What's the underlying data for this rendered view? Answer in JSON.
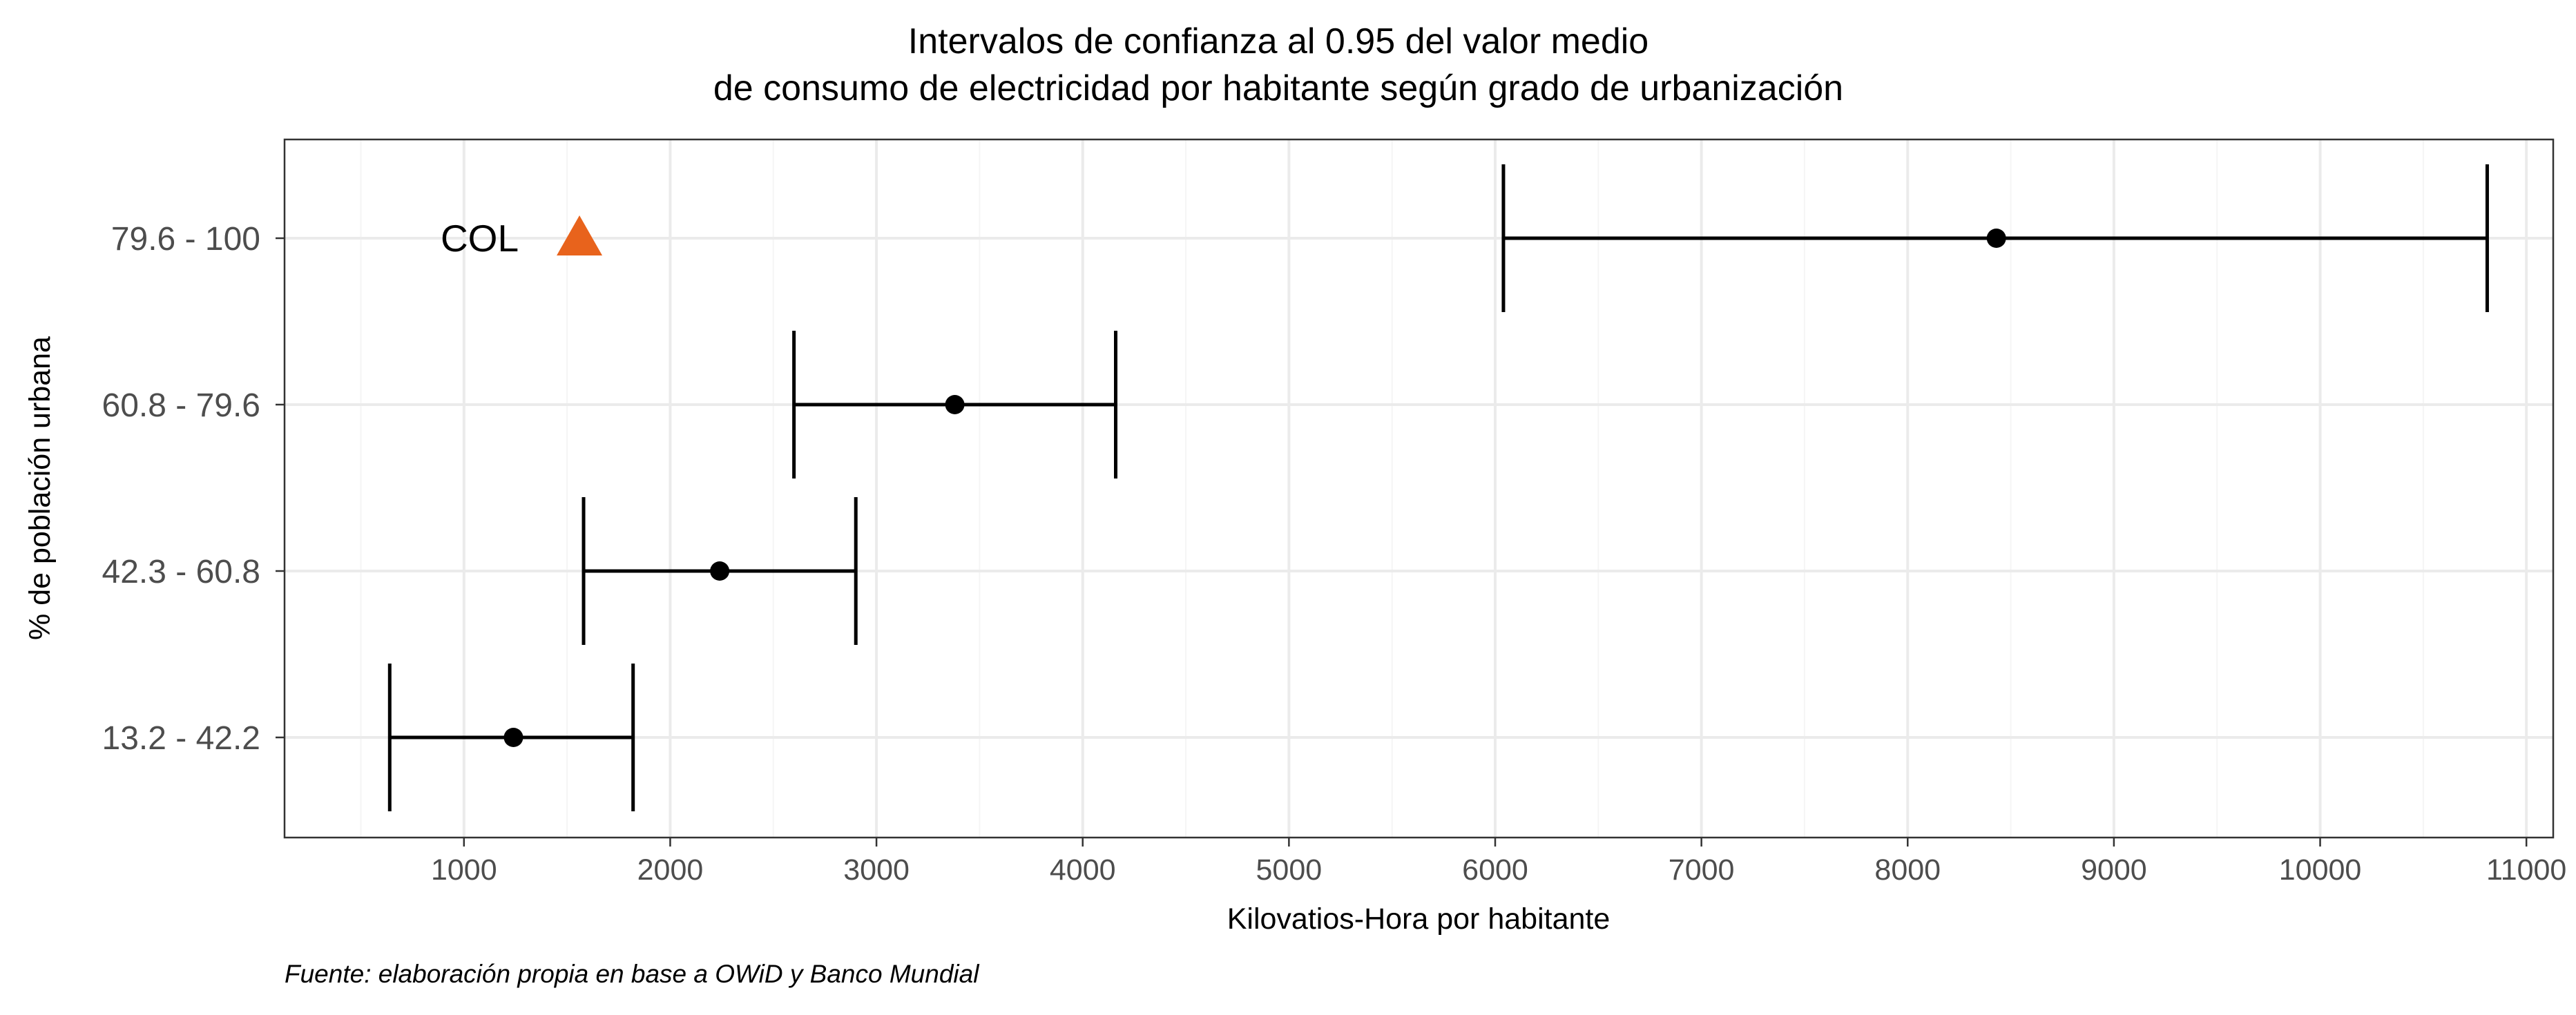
{
  "chart_data": {
    "type": "errorbar",
    "title": "Intervalos de confianza al 0.95 del valor medio",
    "subtitle": "de consumo de electricidad por habitante según grado de urbanización",
    "xlabel": "Kilovatios-Hora por habitante",
    "ylabel": "% de población urbana",
    "caption": "Fuente: elaboración propia en base a OWiD y Banco Mundial",
    "xlim": [
      130,
      11130
    ],
    "x_ticks": [
      1000,
      2000,
      3000,
      4000,
      5000,
      6000,
      7000,
      8000,
      9000,
      10000,
      11000
    ],
    "x_tick_labels": [
      "1000",
      "2000",
      "3000",
      "4000",
      "5000",
      "6000",
      "7000",
      "8000",
      "9000",
      "10000",
      "11000"
    ],
    "x_minor_ticks": [
      500,
      1500,
      2500,
      3500,
      4500,
      5500,
      6500,
      7500,
      8500,
      9500,
      10500
    ],
    "grid": true,
    "categories": [
      "13.2 - 42.2",
      "42.3 - 60.8",
      "60.8 - 79.6",
      "79.6 - 100"
    ],
    "series": [
      {
        "mean": [
          1240,
          2240,
          3380,
          8430
        ],
        "lower": [
          640,
          1580,
          2600,
          6040
        ],
        "upper": [
          1820,
          2900,
          4160,
          10810
        ]
      }
    ],
    "annotations": [
      {
        "label": "COL",
        "x": 1560,
        "category": "79.6 - 100",
        "marker": "triangle",
        "color": "#E8631C"
      }
    ],
    "colors": {
      "interval": "#000000",
      "point": "#000000",
      "grid_major": "#EBEBEB",
      "grid_minor": "#F5F5F5",
      "panel_border": "#333333",
      "tick_text": "#4D4D4D"
    }
  }
}
